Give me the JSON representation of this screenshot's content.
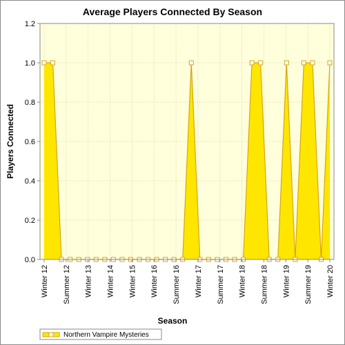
{
  "chart_data": {
    "type": "area",
    "title": "Average Players Connected By Season",
    "xlabel": "Season",
    "ylabel": "Players Connected",
    "ylim": [
      0,
      1.2
    ],
    "yticks": [
      "0.0",
      "0.2",
      "0.4",
      "0.6",
      "0.8",
      "1.0",
      "1.2"
    ],
    "xticks": [
      "Winter 12",
      "Summer 12",
      "Winter 13",
      "Winter 14",
      "Winter 15",
      "Winter 16",
      "Summer 16",
      "Winter 17",
      "Summer 17",
      "Winter 18",
      "Summer 18",
      "Winter 19",
      "Summer 19",
      "Winter 20"
    ],
    "grid": true,
    "legend_position": "bottom-left",
    "colors": {
      "fill": "#ffe600",
      "line": "#d4a514",
      "plot_bg": "#ffffdc",
      "marker_fill": "#ffffff"
    },
    "series": [
      {
        "name": "Northern Vampire Mysteries",
        "points": [
          {
            "x": 0,
            "y": 1.0
          },
          {
            "x": 1,
            "y": 1.0
          },
          {
            "x": 2,
            "y": 0
          },
          {
            "x": 3,
            "y": 0
          },
          {
            "x": 4,
            "y": 0
          },
          {
            "x": 5,
            "y": 0
          },
          {
            "x": 6,
            "y": 0
          },
          {
            "x": 7,
            "y": 0
          },
          {
            "x": 8,
            "y": 0
          },
          {
            "x": 9,
            "y": 0
          },
          {
            "x": 10,
            "y": 0
          },
          {
            "x": 11,
            "y": 0
          },
          {
            "x": 12,
            "y": 0
          },
          {
            "x": 13,
            "y": 0
          },
          {
            "x": 14,
            "y": 0
          },
          {
            "x": 15,
            "y": 0
          },
          {
            "x": 16,
            "y": 0
          },
          {
            "x": 17,
            "y": 1.0
          },
          {
            "x": 18,
            "y": 0
          },
          {
            "x": 19,
            "y": 0
          },
          {
            "x": 20,
            "y": 0
          },
          {
            "x": 21,
            "y": 0
          },
          {
            "x": 22,
            "y": 0
          },
          {
            "x": 23,
            "y": 0
          },
          {
            "x": 24,
            "y": 1.0
          },
          {
            "x": 25,
            "y": 1.0
          },
          {
            "x": 26,
            "y": 0
          },
          {
            "x": 27,
            "y": 0
          },
          {
            "x": 28,
            "y": 1.0
          },
          {
            "x": 29,
            "y": 0
          },
          {
            "x": 30,
            "y": 1.0
          },
          {
            "x": 31,
            "y": 1.0
          },
          {
            "x": 32,
            "y": 0
          },
          {
            "x": 33,
            "y": 1.0
          }
        ]
      }
    ]
  }
}
